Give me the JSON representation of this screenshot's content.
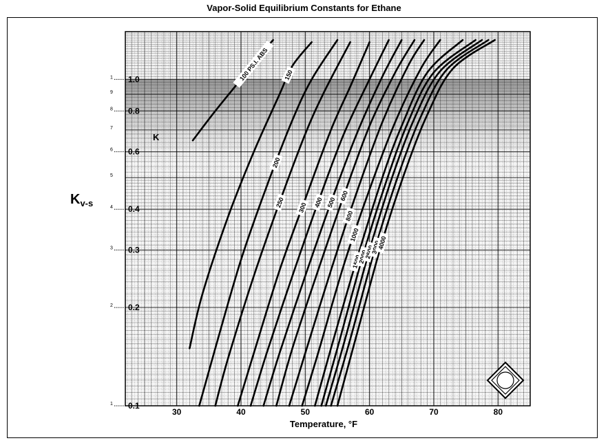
{
  "title": "Vapor-Solid Equilibrium Constants for Ethane",
  "chart_data": {
    "type": "line",
    "title": "Vapor-Solid Equilibrium Constants for Ethane",
    "xlabel": "Temperature, °F",
    "ylabel_main": "K",
    "ylabel_sub": "v-s",
    "k_label": "K",
    "xlim": [
      22,
      85
    ],
    "ylim": [
      0.1,
      1.4
    ],
    "y_scale": "log",
    "grid": true,
    "x_ticks": [
      "30",
      "40",
      "50",
      "60",
      "70",
      "80"
    ],
    "x_tick_values": [
      30,
      40,
      50,
      60,
      70,
      80
    ],
    "y_ticks": [
      "1.0",
      "0.8",
      "0.6",
      "0.4",
      "0.3",
      "0.2",
      "0.1"
    ],
    "y_tick_values": [
      1.0,
      0.8,
      0.6,
      0.4,
      0.3,
      0.2,
      0.1
    ],
    "y_minor_marks": [
      "1",
      "9",
      "8",
      "7",
      "6",
      "5",
      "4",
      "3",
      "2",
      "1"
    ],
    "y_minor_values": [
      1.0,
      0.9,
      0.8,
      0.7,
      0.6,
      0.5,
      0.4,
      0.3,
      0.2,
      0.1
    ],
    "series": [
      {
        "name": "100 PS.I. ABS",
        "points": [
          [
            32.5,
            0.65
          ],
          [
            36,
            0.8
          ],
          [
            40,
            1.0
          ],
          [
            44,
            1.25
          ],
          [
            45,
            1.32
          ]
        ]
      },
      {
        "name": "150",
        "points": [
          [
            32,
            0.15
          ],
          [
            34,
            0.22
          ],
          [
            38,
            0.38
          ],
          [
            42,
            0.6
          ],
          [
            46,
            0.9
          ],
          [
            48,
            1.1
          ],
          [
            51,
            1.3
          ]
        ]
      },
      {
        "name": "200",
        "points": [
          [
            33.5,
            0.1
          ],
          [
            36,
            0.15
          ],
          [
            40,
            0.28
          ],
          [
            44,
            0.47
          ],
          [
            48,
            0.75
          ],
          [
            51,
            1.0
          ],
          [
            55,
            1.32
          ]
        ]
      },
      {
        "name": "250",
        "points": [
          [
            36,
            0.1
          ],
          [
            38,
            0.14
          ],
          [
            42,
            0.25
          ],
          [
            46,
            0.42
          ],
          [
            50,
            0.68
          ],
          [
            53,
            0.92
          ],
          [
            57,
            1.3
          ]
        ]
      },
      {
        "name": "300",
        "points": [
          [
            39.5,
            0.1
          ],
          [
            42,
            0.145
          ],
          [
            46,
            0.26
          ],
          [
            50,
            0.43
          ],
          [
            54,
            0.7
          ],
          [
            57,
            0.95
          ],
          [
            60,
            1.3
          ]
        ]
      },
      {
        "name": "400",
        "points": [
          [
            41.5,
            0.1
          ],
          [
            44,
            0.145
          ],
          [
            48,
            0.25
          ],
          [
            52,
            0.42
          ],
          [
            56,
            0.68
          ],
          [
            60,
            1.0
          ],
          [
            63,
            1.32
          ]
        ]
      },
      {
        "name": "500",
        "points": [
          [
            43.5,
            0.1
          ],
          [
            46,
            0.145
          ],
          [
            50,
            0.25
          ],
          [
            54,
            0.42
          ],
          [
            58,
            0.68
          ],
          [
            62,
            1.02
          ],
          [
            65,
            1.32
          ]
        ]
      },
      {
        "name": "600",
        "points": [
          [
            45.5,
            0.1
          ],
          [
            48,
            0.15
          ],
          [
            52,
            0.26
          ],
          [
            56,
            0.44
          ],
          [
            60,
            0.72
          ],
          [
            64,
            1.05
          ],
          [
            67,
            1.32
          ]
        ]
      },
      {
        "name": "800",
        "points": [
          [
            47.5,
            0.1
          ],
          [
            50,
            0.145
          ],
          [
            54,
            0.26
          ],
          [
            58,
            0.45
          ],
          [
            62,
            0.74
          ],
          [
            66,
            1.1
          ],
          [
            68.5,
            1.32
          ]
        ]
      },
      {
        "name": "1000",
        "points": [
          [
            49.5,
            0.1
          ],
          [
            52,
            0.145
          ],
          [
            56,
            0.27
          ],
          [
            60,
            0.46
          ],
          [
            64,
            0.74
          ],
          [
            68,
            1.08
          ],
          [
            71,
            1.32
          ]
        ]
      },
      {
        "name": "1500",
        "points": [
          [
            51.5,
            0.1
          ],
          [
            54,
            0.15
          ],
          [
            58,
            0.28
          ],
          [
            62,
            0.5
          ],
          [
            65,
            0.72
          ],
          [
            69,
            1.05
          ],
          [
            74.5,
            1.32
          ]
        ]
      },
      {
        "name": "2000",
        "points": [
          [
            52.5,
            0.1
          ],
          [
            55,
            0.15
          ],
          [
            59,
            0.29
          ],
          [
            62.5,
            0.48
          ],
          [
            66,
            0.74
          ],
          [
            70,
            1.05
          ],
          [
            76.5,
            1.32
          ]
        ]
      },
      {
        "name": "2500",
        "points": [
          [
            53.2,
            0.1
          ],
          [
            56,
            0.155
          ],
          [
            60,
            0.3
          ],
          [
            63.5,
            0.5
          ],
          [
            67,
            0.76
          ],
          [
            71,
            1.06
          ],
          [
            77.5,
            1.32
          ]
        ]
      },
      {
        "name": "3000",
        "points": [
          [
            54,
            0.1
          ],
          [
            57,
            0.16
          ],
          [
            61,
            0.31
          ],
          [
            64.5,
            0.51
          ],
          [
            68,
            0.77
          ],
          [
            72,
            1.07
          ],
          [
            78.5,
            1.32
          ]
        ]
      },
      {
        "name": "4000",
        "points": [
          [
            55,
            0.1
          ],
          [
            58,
            0.165
          ],
          [
            62,
            0.32
          ],
          [
            65.5,
            0.52
          ],
          [
            69,
            0.78
          ],
          [
            73,
            1.08
          ],
          [
            79.5,
            1.32
          ]
        ]
      }
    ]
  }
}
